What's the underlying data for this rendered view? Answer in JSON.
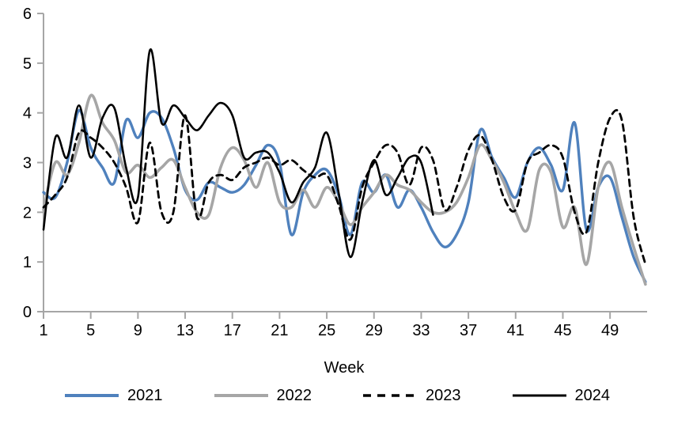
{
  "chart_data": {
    "type": "line",
    "title": "",
    "xlabel": "Week",
    "ylabel": "",
    "xlim": [
      1,
      52
    ],
    "ylim": [
      0,
      6
    ],
    "x_ticks": [
      1,
      5,
      9,
      13,
      17,
      21,
      25,
      29,
      33,
      37,
      41,
      45,
      49
    ],
    "y_ticks": [
      0,
      1,
      2,
      3,
      4,
      5,
      6
    ],
    "grid": false,
    "legend_position": "bottom",
    "axis_color": "#a6a6a6",
    "text_color": "#000000",
    "start_week": 1,
    "smoothed": true,
    "series": [
      {
        "name": "2021",
        "color": "#4f81bd",
        "style": "solid",
        "stroke_width": 3.4,
        "values": [
          2.4,
          2.3,
          3.0,
          4.05,
          3.3,
          2.9,
          2.6,
          3.85,
          3.5,
          4.0,
          3.9,
          3.3,
          2.45,
          2.25,
          2.6,
          2.5,
          2.4,
          2.55,
          2.95,
          3.35,
          3.0,
          1.55,
          2.4,
          2.75,
          2.85,
          2.35,
          1.55,
          2.6,
          2.4,
          2.75,
          2.1,
          2.45,
          2.1,
          1.6,
          1.3,
          1.55,
          2.2,
          3.65,
          3.1,
          2.7,
          2.3,
          3.0,
          3.3,
          2.95,
          2.45,
          3.8,
          1.65,
          2.5,
          2.7,
          1.9,
          1.1,
          0.6
        ]
      },
      {
        "name": "2022",
        "color": "#a6a6a6",
        "style": "solid",
        "stroke_width": 3.6,
        "values": [
          2.05,
          3.0,
          2.75,
          3.4,
          4.35,
          3.8,
          3.45,
          2.8,
          2.95,
          2.7,
          2.9,
          3.05,
          2.5,
          2.0,
          1.95,
          2.9,
          3.3,
          3.05,
          2.5,
          3.0,
          2.2,
          2.1,
          2.45,
          2.1,
          2.5,
          2.2,
          1.75,
          2.1,
          2.4,
          2.75,
          2.55,
          2.45,
          2.2,
          2.0,
          2.0,
          2.2,
          2.7,
          3.35,
          3.05,
          2.6,
          2.0,
          1.65,
          2.85,
          2.8,
          1.7,
          2.1,
          0.95,
          2.5,
          3.0,
          2.1,
          1.3,
          0.55
        ]
      },
      {
        "name": "2023",
        "color": "#000000",
        "style": "dashed",
        "stroke_width": 2.8,
        "values": [
          2.1,
          2.35,
          2.7,
          3.6,
          3.5,
          3.3,
          3.0,
          2.5,
          1.8,
          3.4,
          2.0,
          2.0,
          3.95,
          1.9,
          2.6,
          2.75,
          2.65,
          2.9,
          3.0,
          3.1,
          2.95,
          3.05,
          2.85,
          2.7,
          2.75,
          2.15,
          1.45,
          2.5,
          3.0,
          3.35,
          3.2,
          2.55,
          3.3,
          3.05,
          2.05,
          2.5,
          3.25,
          3.55,
          3.05,
          2.3,
          2.05,
          3.0,
          3.2,
          3.35,
          3.1,
          2.0,
          1.6,
          3.0,
          3.9,
          3.85,
          1.9,
          0.95
        ]
      },
      {
        "name": "2024",
        "color": "#000000",
        "style": "solid",
        "stroke_width": 2.6,
        "values": [
          1.65,
          3.5,
          3.1,
          4.15,
          3.1,
          3.9,
          4.1,
          2.9,
          2.3,
          5.25,
          3.8,
          4.15,
          3.9,
          3.65,
          3.95,
          4.2,
          3.95,
          3.1,
          3.2,
          3.2,
          2.8,
          2.2,
          2.6,
          2.9,
          3.6,
          2.4,
          1.1,
          2.2,
          3.05,
          2.35,
          2.7,
          3.1,
          3.0,
          1.95
        ]
      }
    ]
  }
}
